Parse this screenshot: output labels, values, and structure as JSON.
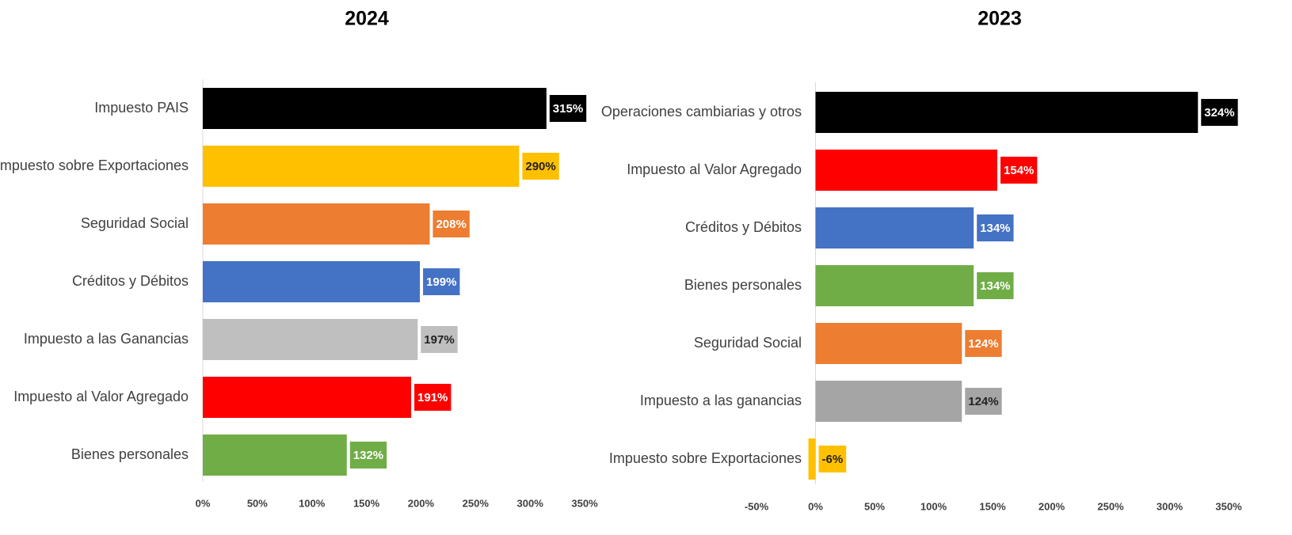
{
  "chart_data": [
    {
      "type": "bar",
      "orientation": "horizontal",
      "title": "2024",
      "categories": [
        "Impuesto PAIS",
        "Impuesto sobre Exportaciones",
        "Seguridad Social",
        "Créditos y Débitos",
        "Impuesto a las Ganancias",
        "Impuesto al Valor Agregado",
        "Bienes personales"
      ],
      "values": [
        315,
        290,
        208,
        199,
        197,
        191,
        132
      ],
      "value_labels": [
        "315%",
        "290%",
        "208%",
        "199%",
        "197%",
        "191%",
        "132%"
      ],
      "colors": [
        "#000000",
        "#ffc000",
        "#ed7d31",
        "#4472c4",
        "#bfbfbf",
        "#ff0000",
        "#70ad47"
      ],
      "xlim": [
        0,
        350
      ],
      "xticks": [
        {
          "value": 0,
          "label": "0%"
        },
        {
          "value": 50,
          "label": "50%"
        },
        {
          "value": 100,
          "label": "100%"
        },
        {
          "value": 150,
          "label": "150%"
        },
        {
          "value": 200,
          "label": "200%"
        },
        {
          "value": 250,
          "label": "250%"
        },
        {
          "value": 300,
          "label": "300%"
        },
        {
          "value": 350,
          "label": "350%"
        }
      ]
    },
    {
      "type": "bar",
      "orientation": "horizontal",
      "title": "2023",
      "categories": [
        "Operaciones cambiarias y otros",
        "Impuesto al Valor Agregado",
        "Créditos y Débitos",
        "Bienes personales",
        "Seguridad Social",
        "Impuesto a las ganancias",
        "Impuesto sobre Exportaciones"
      ],
      "values": [
        324,
        154,
        134,
        134,
        124,
        124,
        -6
      ],
      "value_labels": [
        "324%",
        "154%",
        "134%",
        "134%",
        "124%",
        "124%",
        "-6%"
      ],
      "colors": [
        "#000000",
        "#ff0000",
        "#4472c4",
        "#70ad47",
        "#ed7d31",
        "#a5a5a5",
        "#ffc000"
      ],
      "xlim": [
        -50,
        350
      ],
      "xticks": [
        {
          "value": -50,
          "label": "-50%"
        },
        {
          "value": 0,
          "label": "0%"
        },
        {
          "value": 50,
          "label": "50%"
        },
        {
          "value": 100,
          "label": "100%"
        },
        {
          "value": 150,
          "label": "150%"
        },
        {
          "value": 200,
          "label": "200%"
        },
        {
          "value": 250,
          "label": "250%"
        },
        {
          "value": 300,
          "label": "300%"
        },
        {
          "value": 350,
          "label": "350%"
        }
      ]
    }
  ]
}
